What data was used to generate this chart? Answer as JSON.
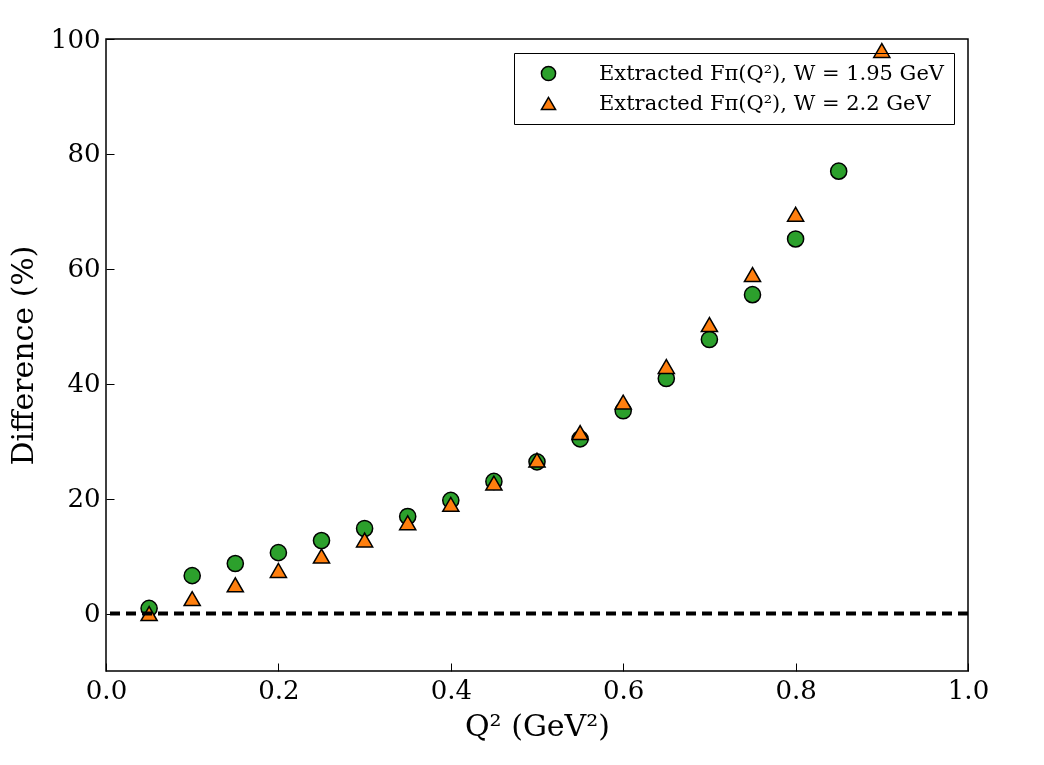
{
  "chart_data": {
    "type": "scatter",
    "xlabel": "Q² (GeV²)",
    "ylabel": "Difference (%)",
    "x": [
      0.05,
      0.1,
      0.15,
      0.2,
      0.25,
      0.3,
      0.35,
      0.4,
      0.45,
      0.5,
      0.55,
      0.6,
      0.65,
      0.7,
      0.75,
      0.8,
      0.85,
      0.9
    ],
    "series": [
      {
        "name": "Extracted Fπ(Q²), W = 1.95 GeV",
        "color": "#2ca02c",
        "marker": "circle",
        "values": [
          0.9,
          6.6,
          8.7,
          10.6,
          12.7,
          14.8,
          16.9,
          19.7,
          23,
          26.4,
          30.4,
          35.3,
          40.9,
          47.7,
          55.5,
          65.2,
          77,
          null
        ]
      },
      {
        "name": "Extracted Fπ(Q²), W = 2.2 GeV",
        "color": "#ff7f0e",
        "marker": "triangle",
        "values": [
          0,
          2.6,
          5,
          7.5,
          10,
          12.8,
          15.8,
          19,
          22.7,
          26.7,
          31.5,
          36.8,
          43,
          50.3,
          59,
          69.5,
          null,
          98
        ]
      }
    ],
    "xlim": [
      0,
      1
    ],
    "ylim": [
      -10,
      100
    ],
    "xticks": [
      {
        "value": 0,
        "label": "0.0"
      },
      {
        "value": 0.2,
        "label": "0.2"
      },
      {
        "value": 0.4,
        "label": "0.4"
      },
      {
        "value": 0.6,
        "label": "0.6"
      },
      {
        "value": 0.8,
        "label": "0.8"
      },
      {
        "value": 1,
        "label": "1.0"
      }
    ],
    "yticks": [
      0,
      20,
      40,
      60,
      80,
      100
    ],
    "ref_lines": [
      {
        "axis": "y",
        "value": 0,
        "color": "#000000",
        "line_style": "dashed"
      }
    ],
    "grid": false,
    "legend": "top right"
  }
}
